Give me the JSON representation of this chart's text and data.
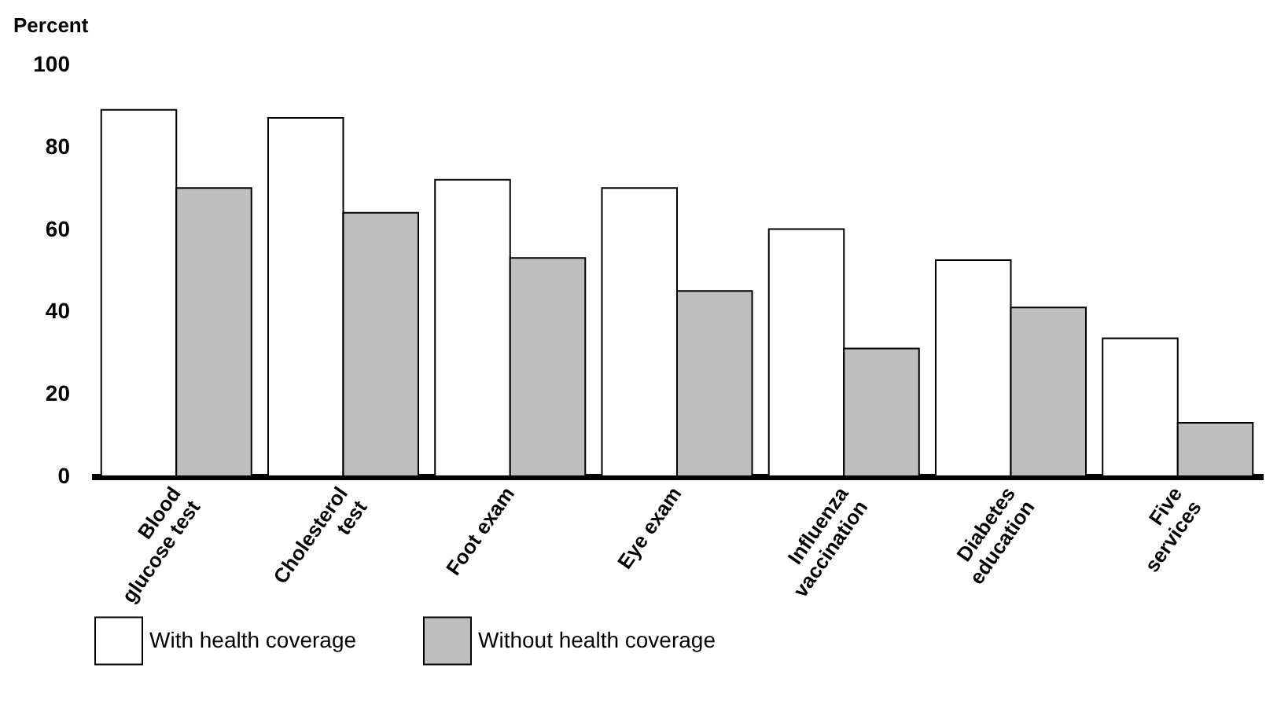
{
  "chart_data": {
    "type": "bar",
    "ylabel": "Percent",
    "categories": [
      "Blood glucose test",
      "Cholesterol test",
      "Foot exam",
      "Eye exam",
      "Influenza vaccination",
      "Diabetes education",
      "Five services"
    ],
    "series": [
      {
        "name": "With health coverage",
        "color": "#ffffff",
        "values": [
          89,
          87,
          72,
          70,
          60,
          52.5,
          33.5
        ]
      },
      {
        "name": "Without health coverage",
        "color": "#bebebe",
        "values": [
          70,
          64,
          53,
          45,
          31,
          41,
          13
        ]
      }
    ],
    "ylim": [
      0,
      100
    ],
    "yticks": [
      0,
      20,
      40,
      60,
      80,
      100
    ],
    "grid": false,
    "legend": "bottom"
  }
}
